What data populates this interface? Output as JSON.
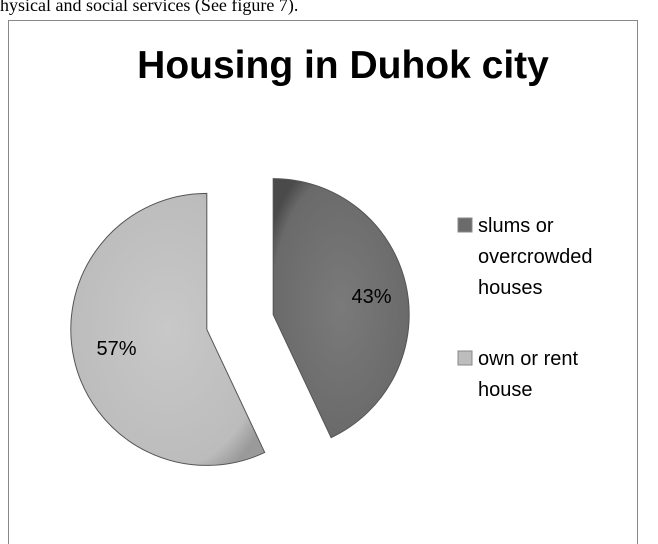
{
  "caption": "hysical and social services (See figure 7).",
  "chart_data": {
    "type": "pie",
    "title": "Housing in Duhok city",
    "slices": [
      {
        "label_lines": [
          "slums or",
          "overcrowded",
          "houses"
        ],
        "value": 43,
        "value_label": "43%",
        "color": "#6b6b6b"
      },
      {
        "label_lines": [
          "own or rent",
          "house"
        ],
        "value": 57,
        "value_label": "57%",
        "color": "#bdbdbd"
      }
    ],
    "exploded": true,
    "legend_position": "right"
  }
}
